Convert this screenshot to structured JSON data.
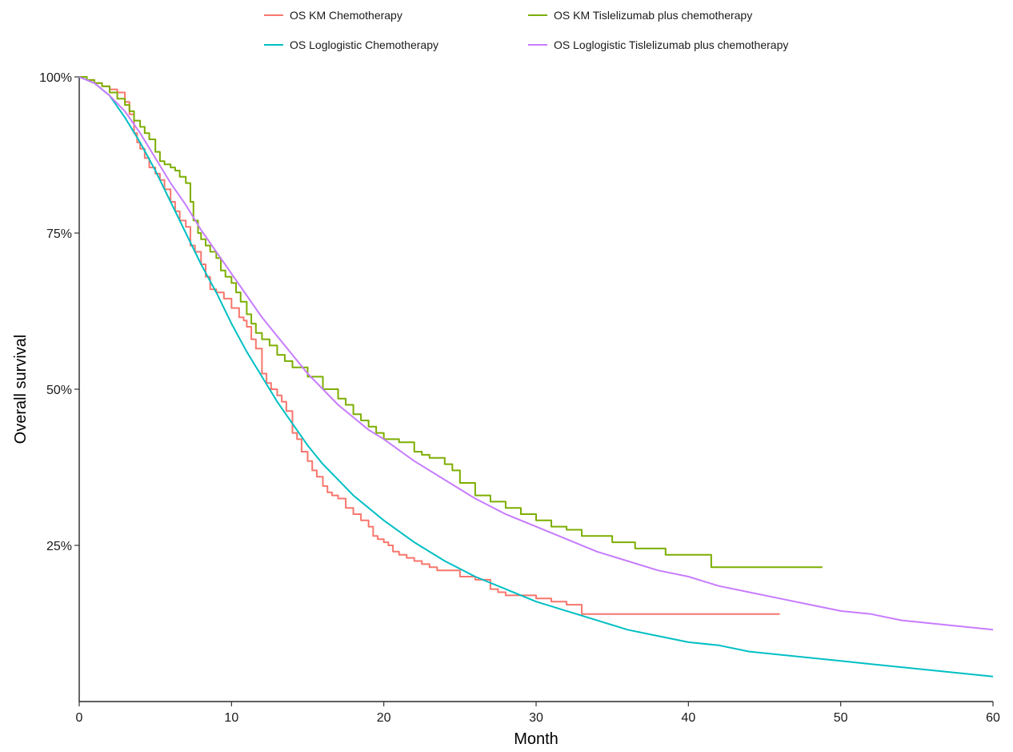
{
  "chart_data": {
    "type": "line",
    "title": "",
    "xlabel": "Month",
    "ylabel": "Overall survival",
    "xlim": [
      0,
      60
    ],
    "ylim": [
      0,
      1
    ],
    "x_ticks": [
      0,
      10,
      20,
      30,
      40,
      50,
      60
    ],
    "x_tick_labels": [
      "0",
      "10",
      "20",
      "30",
      "40",
      "50",
      "60"
    ],
    "y_ticks": [
      0.25,
      0.5,
      0.75,
      1.0
    ],
    "y_tick_labels": [
      "25%",
      "50%",
      "75%",
      "100%"
    ],
    "grid": false,
    "legend_position": "top",
    "series": [
      {
        "name": "OS KM Chemotherapy",
        "color": "#F8766D",
        "step": true,
        "x": [
          0,
          0.5,
          1.0,
          1.5,
          2.0,
          2.5,
          3.0,
          3.3,
          3.6,
          3.8,
          4.0,
          4.3,
          4.6,
          5.0,
          5.3,
          5.6,
          6.0,
          6.3,
          6.6,
          7.0,
          7.3,
          7.6,
          8.0,
          8.3,
          8.6,
          9.0,
          9.5,
          10.0,
          10.5,
          10.8,
          11.0,
          11.3,
          11.6,
          12.0,
          12.3,
          12.6,
          13.0,
          13.3,
          13.6,
          14.0,
          14.3,
          14.6,
          15.0,
          15.3,
          15.6,
          16.0,
          16.3,
          16.6,
          17.0,
          17.5,
          18.0,
          18.5,
          19.0,
          19.3,
          19.6,
          20.0,
          20.3,
          20.6,
          21.0,
          21.5,
          22.0,
          22.5,
          23.0,
          23.5,
          24.0,
          25.0,
          26.0,
          27.0,
          27.5,
          28.0,
          29.0,
          30.0,
          31.0,
          32.0,
          33.0,
          46.0
        ],
        "y": [
          1.0,
          0.995,
          0.99,
          0.985,
          0.98,
          0.975,
          0.96,
          0.94,
          0.91,
          0.895,
          0.885,
          0.87,
          0.855,
          0.845,
          0.835,
          0.82,
          0.8,
          0.785,
          0.77,
          0.76,
          0.73,
          0.72,
          0.7,
          0.68,
          0.66,
          0.655,
          0.645,
          0.63,
          0.615,
          0.61,
          0.6,
          0.58,
          0.565,
          0.525,
          0.51,
          0.5,
          0.49,
          0.48,
          0.465,
          0.43,
          0.42,
          0.4,
          0.385,
          0.37,
          0.36,
          0.345,
          0.335,
          0.33,
          0.325,
          0.31,
          0.3,
          0.29,
          0.28,
          0.265,
          0.26,
          0.255,
          0.25,
          0.24,
          0.235,
          0.23,
          0.225,
          0.22,
          0.215,
          0.21,
          0.21,
          0.2,
          0.195,
          0.18,
          0.175,
          0.17,
          0.17,
          0.165,
          0.16,
          0.155,
          0.14,
          0.14
        ]
      },
      {
        "name": "OS Loglogistic Chemotherapy",
        "color": "#00BFC4",
        "step": false,
        "x": [
          0,
          1,
          2,
          3,
          4,
          5,
          6,
          7,
          8,
          9,
          10,
          11,
          12,
          13,
          14,
          15,
          16,
          17,
          18,
          19,
          20,
          22,
          24,
          26,
          28,
          30,
          32,
          34,
          36,
          38,
          40,
          42,
          44,
          46,
          48,
          50,
          52,
          54,
          56,
          58,
          60
        ],
        "y": [
          1.0,
          0.99,
          0.97,
          0.935,
          0.895,
          0.85,
          0.8,
          0.75,
          0.7,
          0.655,
          0.605,
          0.56,
          0.52,
          0.48,
          0.445,
          0.41,
          0.38,
          0.355,
          0.33,
          0.31,
          0.29,
          0.255,
          0.225,
          0.2,
          0.18,
          0.16,
          0.145,
          0.13,
          0.115,
          0.105,
          0.095,
          0.09,
          0.08,
          0.075,
          0.07,
          0.065,
          0.06,
          0.055,
          0.05,
          0.045,
          0.04
        ]
      },
      {
        "name": "OS KM Tislelizumab plus chemotherapy",
        "color": "#7CAE00",
        "step": true,
        "x": [
          0,
          0.5,
          1.0,
          1.5,
          2.0,
          2.5,
          3.0,
          3.3,
          3.6,
          4.0,
          4.3,
          4.6,
          5.0,
          5.3,
          5.6,
          6.0,
          6.3,
          6.6,
          7.0,
          7.3,
          7.5,
          7.8,
          8.0,
          8.3,
          8.6,
          9.0,
          9.3,
          9.6,
          10.0,
          10.3,
          10.6,
          11.0,
          11.3,
          11.6,
          12.0,
          12.5,
          13.0,
          13.5,
          14.0,
          15.0,
          16.0,
          17.0,
          17.5,
          18.0,
          18.5,
          19.0,
          19.5,
          20.0,
          21.0,
          22.0,
          22.5,
          23.0,
          24.0,
          24.5,
          25.0,
          26.0,
          27.0,
          28.0,
          29.0,
          30.0,
          31.0,
          32.0,
          33.0,
          35.0,
          36.5,
          38.5,
          41.5,
          48.8
        ],
        "y": [
          1.0,
          0.995,
          0.99,
          0.985,
          0.975,
          0.965,
          0.955,
          0.945,
          0.93,
          0.92,
          0.91,
          0.9,
          0.88,
          0.865,
          0.86,
          0.855,
          0.85,
          0.84,
          0.83,
          0.8,
          0.77,
          0.75,
          0.74,
          0.73,
          0.72,
          0.71,
          0.69,
          0.68,
          0.67,
          0.655,
          0.64,
          0.62,
          0.605,
          0.59,
          0.58,
          0.57,
          0.555,
          0.545,
          0.535,
          0.52,
          0.5,
          0.485,
          0.475,
          0.46,
          0.45,
          0.44,
          0.43,
          0.42,
          0.415,
          0.4,
          0.395,
          0.39,
          0.38,
          0.37,
          0.35,
          0.33,
          0.32,
          0.31,
          0.3,
          0.29,
          0.28,
          0.275,
          0.265,
          0.255,
          0.245,
          0.235,
          0.215,
          0.215
        ]
      },
      {
        "name": "OS Loglogistic Tislelizumab plus chemotherapy",
        "color": "#C77CFF",
        "step": false,
        "x": [
          0,
          1,
          2,
          3,
          4,
          5,
          6,
          7,
          8,
          9,
          10,
          11,
          12,
          13,
          14,
          15,
          16,
          17,
          18,
          19,
          20,
          22,
          24,
          26,
          28,
          30,
          32,
          34,
          36,
          38,
          40,
          42,
          44,
          46,
          48,
          50,
          52,
          54,
          56,
          58,
          60
        ],
        "y": [
          1.0,
          0.99,
          0.97,
          0.945,
          0.91,
          0.87,
          0.83,
          0.795,
          0.755,
          0.72,
          0.685,
          0.65,
          0.615,
          0.585,
          0.555,
          0.525,
          0.5,
          0.475,
          0.455,
          0.435,
          0.42,
          0.385,
          0.355,
          0.325,
          0.3,
          0.28,
          0.26,
          0.24,
          0.225,
          0.21,
          0.2,
          0.185,
          0.175,
          0.165,
          0.155,
          0.145,
          0.14,
          0.13,
          0.125,
          0.12,
          0.115
        ]
      }
    ]
  }
}
